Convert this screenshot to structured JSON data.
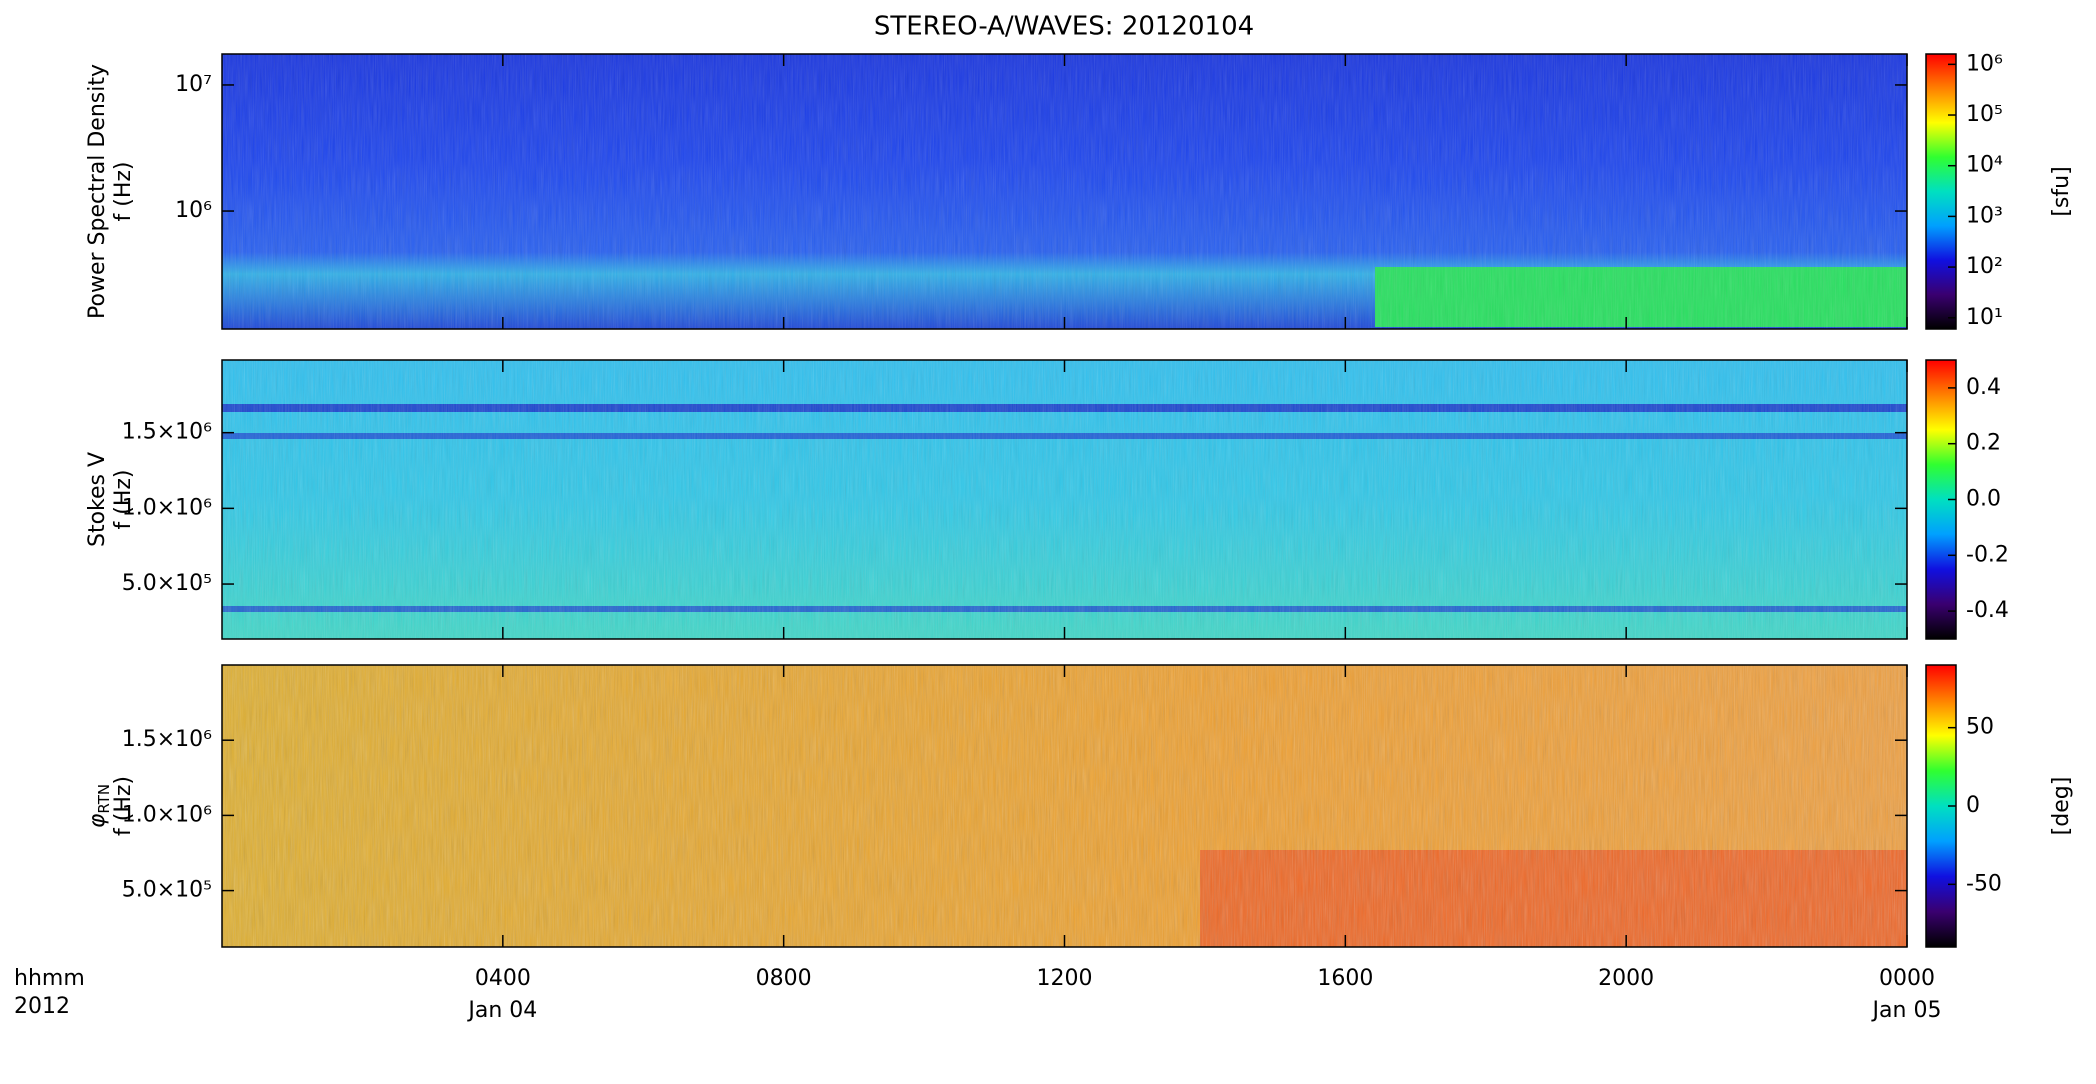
{
  "title": "STEREO-A/WAVES: 20120104",
  "x_axis": {
    "xlim": [
      0,
      24
    ],
    "xticks": [
      {
        "value": 4,
        "label": "0400"
      },
      {
        "value": 8,
        "label": "0800"
      },
      {
        "value": 12,
        "label": "1200"
      },
      {
        "value": 16,
        "label": "1600"
      },
      {
        "value": 20,
        "label": "2000"
      },
      {
        "value": 24,
        "label": "0000"
      }
    ],
    "date_labels": [
      {
        "value": 4,
        "label": "Jan 04"
      },
      {
        "value": 24,
        "label": "Jan 05"
      }
    ],
    "corner_labels": [
      "hhmm",
      "2012"
    ]
  },
  "chart_data": [
    {
      "type": "heatmap",
      "ylabel": "Power Spectral Density",
      "ylabel2": "f (Hz)",
      "log_y": true,
      "ylim": [
        116000,
        17600000
      ],
      "yticks": [
        {
          "value": 1000000,
          "label": "10⁶"
        },
        {
          "value": 10000000,
          "label": "10⁷"
        }
      ],
      "colorbar": {
        "label": "[sfu]",
        "log": true,
        "clim": [
          6,
          1600000
        ],
        "ticks": [
          {
            "value": 10,
            "label": "10¹"
          },
          {
            "value": 100,
            "label": "10²"
          },
          {
            "value": 1000,
            "label": "10³"
          },
          {
            "value": 10000,
            "label": "10⁴"
          },
          {
            "value": 100000,
            "label": "10⁵"
          },
          {
            "value": 1000000,
            "label": "10⁶"
          }
        ],
        "colors": [
          "#000000",
          "#3a0070",
          "#1010e0",
          "#00a0ff",
          "#00e0c0",
          "#30ff30",
          "#ffff00",
          "#ff8000",
          "#ff0000"
        ]
      }
    },
    {
      "type": "heatmap",
      "ylabel": "Stokes V",
      "ylabel2": "f (Hz)",
      "log_y": false,
      "ylim": [
        137000,
        1980000
      ],
      "yticks": [
        {
          "value": 500000,
          "label": "5.0×10⁵"
        },
        {
          "value": 1000000,
          "label": "1.0×10⁶"
        },
        {
          "value": 1500000,
          "label": "1.5×10⁶"
        }
      ],
      "colorbar": {
        "label": "",
        "log": false,
        "clim": [
          -0.5,
          0.5
        ],
        "ticks": [
          -0.4,
          -0.2,
          {
            "value": 0,
            "label": "0.0"
          },
          0.2,
          0.4
        ],
        "colors": [
          "#000000",
          "#3a0070",
          "#1010e0",
          "#00a0ff",
          "#00e0c0",
          "#30ff30",
          "#ffff00",
          "#ff8000",
          "#ff0000"
        ]
      }
    },
    {
      "type": "heatmap",
      "ylabel": "φ",
      "ylabel_sub": "RTN",
      "ylabel2": "f (Hz)",
      "log_y": false,
      "ylim": [
        125000,
        2000000
      ],
      "yticks": [
        {
          "value": 500000,
          "label": "5.0×10⁵"
        },
        {
          "value": 1000000,
          "label": "1.0×10⁶"
        },
        {
          "value": 1500000,
          "label": "1.5×10⁶"
        }
      ],
      "colorbar": {
        "label": "[deg]",
        "log": false,
        "clim": [
          -90,
          90
        ],
        "ticks": [
          -50,
          0,
          50
        ],
        "colors": [
          "#000000",
          "#3a0070",
          "#1010e0",
          "#00a0ff",
          "#00e0c0",
          "#30ff30",
          "#ffff00",
          "#ff8000",
          "#ff0000"
        ]
      }
    }
  ]
}
